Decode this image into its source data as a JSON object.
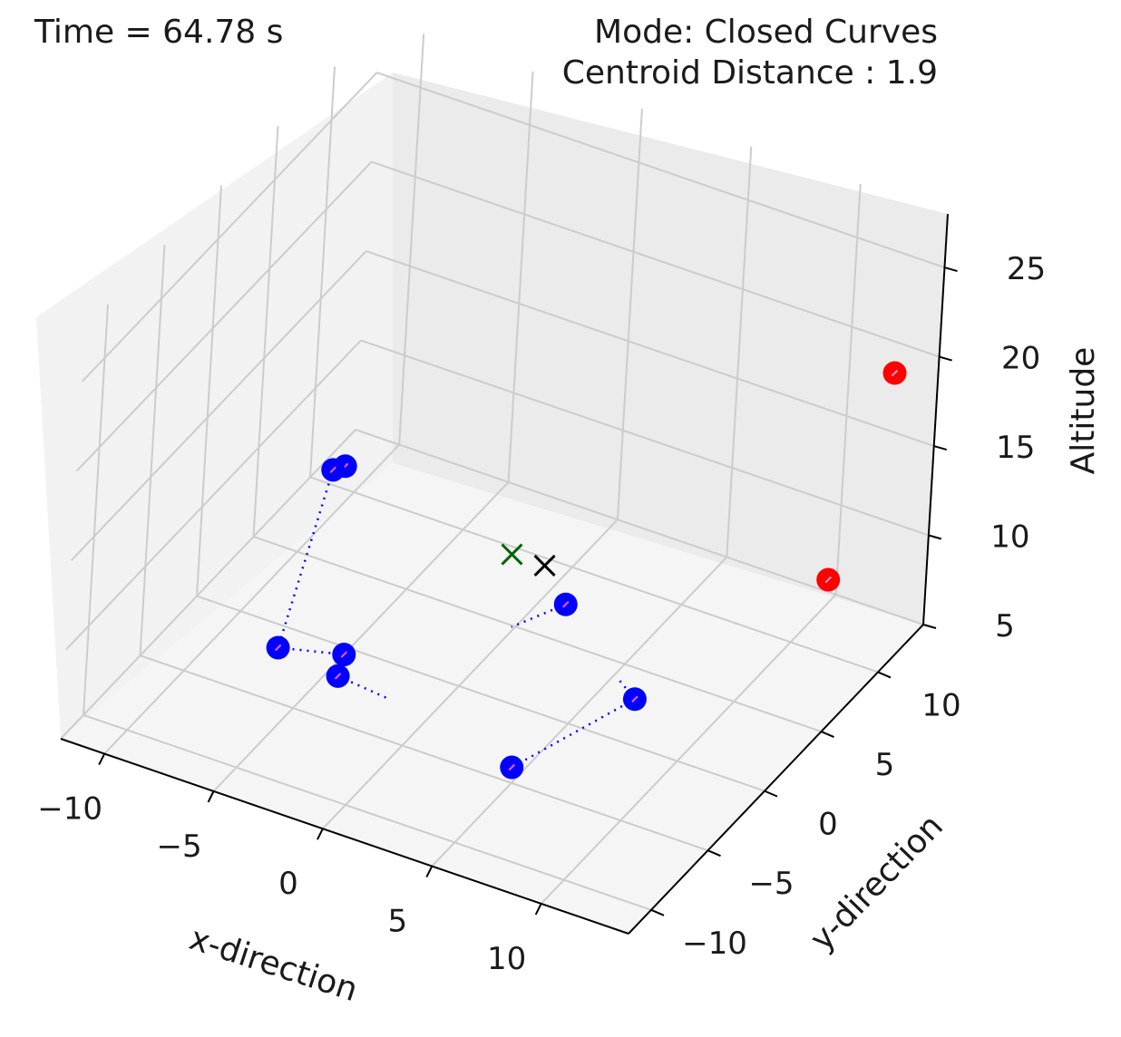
{
  "header": {
    "time_text": "Time = 64.78 s",
    "mode_text": "Mode: Closed Curves",
    "centroid_text": "Centroid Distance : 1.9"
  },
  "chart_data": {
    "type": "scatter3d",
    "xlabel": "x-direction",
    "ylabel": "y-direction",
    "zlabel": "Altitude",
    "x_ticks": [
      "−10",
      "−5",
      "0",
      "5",
      "10"
    ],
    "y_ticks": [
      "−10",
      "−5",
      "0",
      "5",
      "10"
    ],
    "z_ticks": [
      "5",
      "10",
      "15",
      "20",
      "25"
    ],
    "grid": true,
    "colors": {
      "agents": "#0000ff",
      "targets": "#ff0000",
      "centroid_marker": "#006400",
      "reference_marker": "#000000",
      "pane": "#f2f2f2",
      "gridline": "#cccccc"
    },
    "agents": [
      {
        "x": -9.5,
        "y": 8.0,
        "z": 8
      },
      {
        "x": -9.8,
        "y": 7.5,
        "z": 8
      },
      {
        "x": -7.5,
        "y": -1.5,
        "z": 5
      },
      {
        "x": -5.0,
        "y": -0.5,
        "z": 5
      },
      {
        "x": -4.5,
        "y": -2.0,
        "z": 5
      },
      {
        "x": 1.0,
        "y": 7.5,
        "z": 5
      },
      {
        "x": 6.5,
        "y": 3.0,
        "z": 5
      },
      {
        "x": 4.5,
        "y": -4.0,
        "z": 5
      }
    ],
    "targets": [
      {
        "x": 12.0,
        "y": 9.0,
        "z": 10
      },
      {
        "x": 13.0,
        "y": 12.0,
        "z": 20
      }
    ],
    "markers": [
      {
        "name": "centroid",
        "symbol": "x",
        "x": -2.5,
        "y": 9.5,
        "z": 5
      },
      {
        "name": "reference",
        "symbol": "x",
        "x": -1.0,
        "y": 9.5,
        "z": 5
      }
    ]
  }
}
